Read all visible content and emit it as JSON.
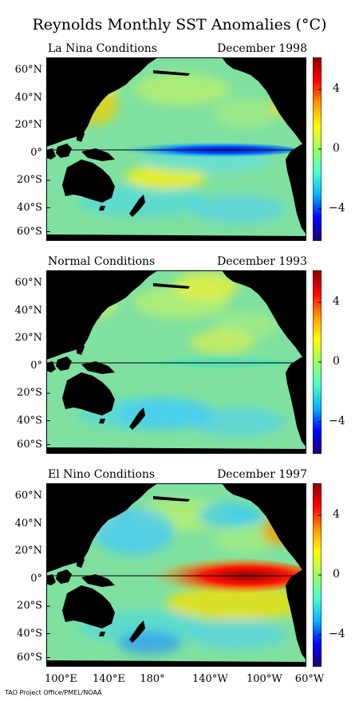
{
  "title": "Reynolds Monthly SST Anomalies (°C)",
  "panels": [
    {
      "condition": "La Nina Conditions",
      "date": "December 1998",
      "equator_anomaly": "cold"
    },
    {
      "condition": "Normal Conditions",
      "date": "December 1993",
      "equator_anomaly": "neutral"
    },
    {
      "condition": "El Nino Conditions",
      "date": "December 1997",
      "equator_anomaly": "warm"
    }
  ],
  "lat_labels": [
    "60°N",
    "40°N",
    "20°N",
    "0°",
    "20°S",
    "40°S",
    "60°S"
  ],
  "lon_labels": [
    "100°E",
    "140°E",
    "180°",
    "140°W",
    "100°W",
    "60°W"
  ],
  "colorbar": {
    "ticks": [
      "4",
      "0",
      "−4"
    ],
    "min": -6,
    "max": 6,
    "colors": [
      "#1a0070",
      "#0000ff",
      "#00b4ff",
      "#4cffc8",
      "#9bff64",
      "#ffff00",
      "#ff9600",
      "#ff0000",
      "#8c0000"
    ]
  },
  "credit": "TAO Project Office/PMEL/NOAA",
  "colors": {
    "land": "#000000",
    "ocean_base": "#7fe0a0"
  }
}
